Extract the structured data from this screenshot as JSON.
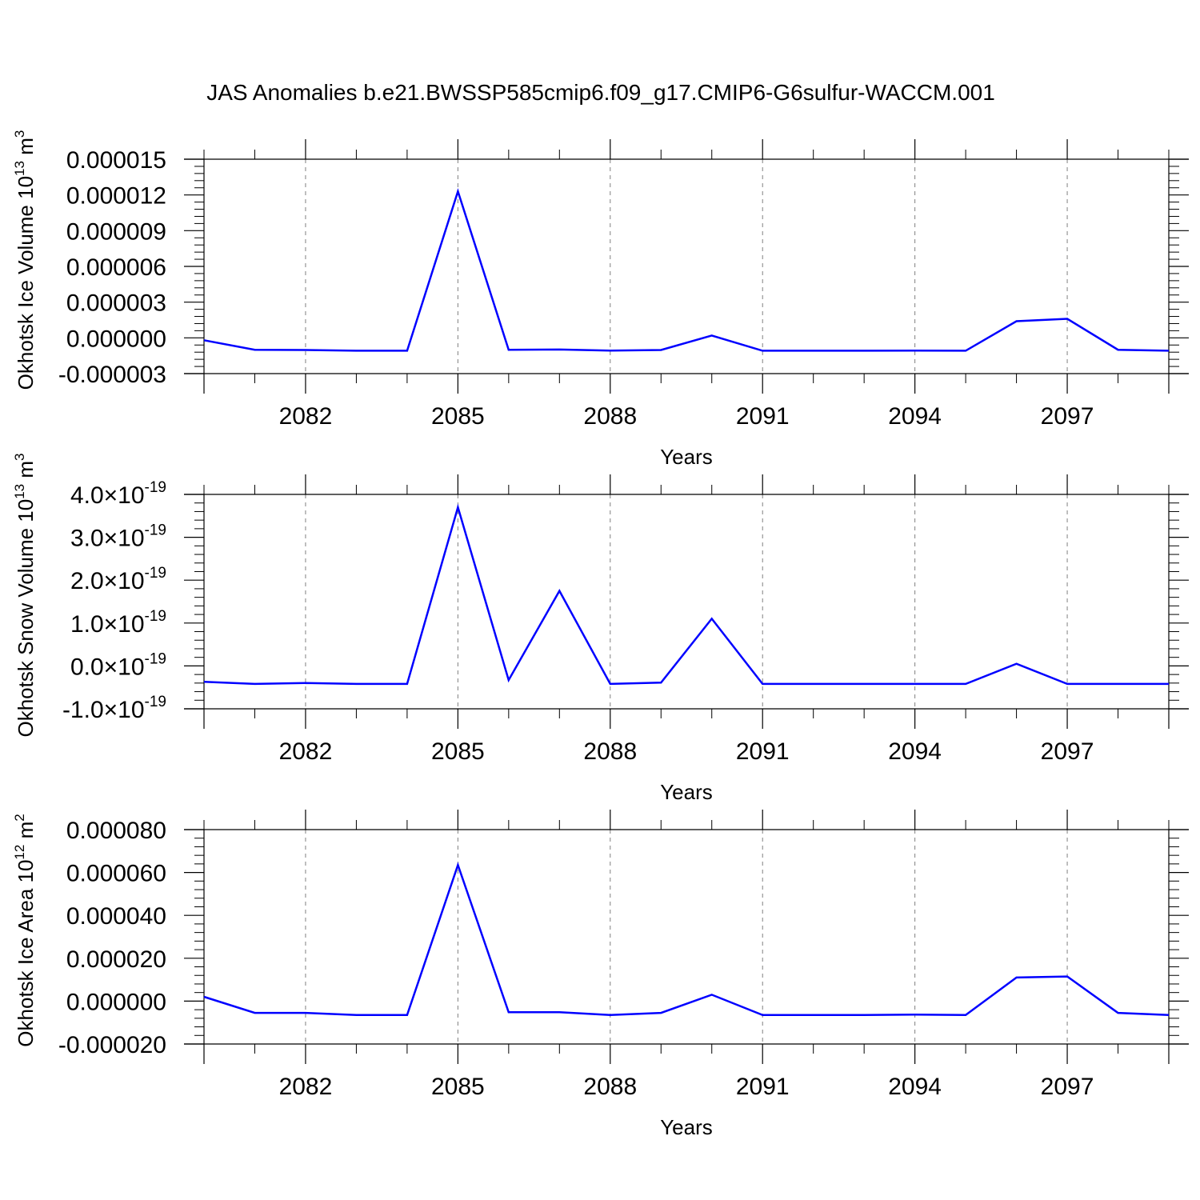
{
  "title": "JAS Anomalies b.e21.BWSSP585cmip6.f09_g17.CMIP6-G6sulfur-WACCM.001",
  "colors": {
    "line": "#0000ff",
    "axis": "#000000",
    "grid": "#808080"
  },
  "chart_data": [
    {
      "type": "line",
      "ylabel": "Okhotsk Ice Volume 10",
      "ylabel_sup": "13",
      "ylabel_unit": " m",
      "ylabel_unit_sup": "3",
      "xlabel": "Years",
      "xlim": [
        2080,
        2099
      ],
      "ylim": [
        -3e-06,
        1.5e-05
      ],
      "x_ticks": [
        2082,
        2085,
        2088,
        2091,
        2094,
        2097
      ],
      "x_tick_labels": [
        "2082",
        "2085",
        "2088",
        "2091",
        "2094",
        "2097"
      ],
      "y_ticks": [
        -3e-06,
        0,
        3e-06,
        6e-06,
        9e-06,
        1.2e-05,
        1.5e-05
      ],
      "y_tick_labels": [
        "-0.000003",
        "0.000000",
        "0.000003",
        "0.000006",
        "0.000009",
        "0.000012",
        "0.000015"
      ],
      "grid": "vertical dashed at major x ticks",
      "x": [
        2080,
        2081,
        2082,
        2083,
        2084,
        2085,
        2086,
        2087,
        2088,
        2089,
        2090,
        2091,
        2092,
        2093,
        2094,
        2095,
        2096,
        2097,
        2098,
        2099
      ],
      "series": [
        {
          "values": [
            -2e-07,
            -1e-06,
            -1.02e-06,
            -1.08e-06,
            -1.08e-06,
            1.23e-05,
            -1e-06,
            -9.8e-07,
            -1.07e-06,
            -1.02e-06,
            2e-07,
            -1.08e-06,
            -1.08e-06,
            -1.08e-06,
            -1.07e-06,
            -1.08e-06,
            1.4e-06,
            1.6e-06,
            -1e-06,
            -1.08e-06
          ]
        }
      ]
    },
    {
      "type": "line",
      "ylabel": "Okhotsk Snow Volume 10",
      "ylabel_sup": "13",
      "ylabel_unit": " m",
      "ylabel_unit_sup": "3",
      "xlabel": "Years",
      "xlim": [
        2080,
        2099
      ],
      "ylim": [
        -1e-19,
        4e-19
      ],
      "x_ticks": [
        2082,
        2085,
        2088,
        2091,
        2094,
        2097
      ],
      "x_tick_labels": [
        "2082",
        "2085",
        "2088",
        "2091",
        "2094",
        "2097"
      ],
      "y_ticks": [
        -1e-19,
        0,
        1e-19,
        2e-19,
        3e-19,
        4e-19
      ],
      "y_tick_mantissas": [
        "-1.0",
        "0.0",
        "1.0",
        "2.0",
        "3.0",
        "4.0"
      ],
      "y_tick_times": "×10",
      "y_tick_exponent": "-19",
      "grid": "vertical dashed at major x ticks",
      "x": [
        2080,
        2081,
        2082,
        2083,
        2084,
        2085,
        2086,
        2087,
        2088,
        2089,
        2090,
        2091,
        2092,
        2093,
        2094,
        2095,
        2096,
        2097,
        2098,
        2099
      ],
      "series": [
        {
          "values": [
            -3.7e-20,
            -4.2e-20,
            -4e-20,
            -4.2e-20,
            -4.2e-20,
            3.7e-19,
            -3.3e-20,
            1.75e-19,
            -4.2e-20,
            -3.9e-20,
            1.1e-19,
            -4.2e-20,
            -4.2e-20,
            -4.2e-20,
            -4.2e-20,
            -4.2e-20,
            5e-21,
            -4.2e-20,
            -4.2e-20,
            -4.2e-20
          ]
        }
      ]
    },
    {
      "type": "line",
      "ylabel": "Okhotsk Ice Area 10",
      "ylabel_sup": "12",
      "ylabel_unit": " m",
      "ylabel_unit_sup": "2",
      "xlabel": "Years",
      "xlim": [
        2080,
        2099
      ],
      "ylim": [
        -2e-05,
        8e-05
      ],
      "x_ticks": [
        2082,
        2085,
        2088,
        2091,
        2094,
        2097
      ],
      "x_tick_labels": [
        "2082",
        "2085",
        "2088",
        "2091",
        "2094",
        "2097"
      ],
      "y_ticks": [
        -2e-05,
        0,
        2e-05,
        4e-05,
        6e-05,
        8e-05
      ],
      "y_tick_labels": [
        "-0.000020",
        "0.000000",
        "0.000020",
        "0.000040",
        "0.000060",
        "0.000080"
      ],
      "grid": "vertical dashed at major x ticks",
      "x": [
        2080,
        2081,
        2082,
        2083,
        2084,
        2085,
        2086,
        2087,
        2088,
        2089,
        2090,
        2091,
        2092,
        2093,
        2094,
        2095,
        2096,
        2097,
        2098,
        2099
      ],
      "series": [
        {
          "values": [
            2e-06,
            -5.5e-06,
            -5.5e-06,
            -6.5e-06,
            -6.5e-06,
            6.35e-05,
            -5.2e-06,
            -5.2e-06,
            -6.5e-06,
            -5.5e-06,
            3e-06,
            -6.5e-06,
            -6.5e-06,
            -6.5e-06,
            -6.3e-06,
            -6.5e-06,
            1.1e-05,
            1.15e-05,
            -5.5e-06,
            -6.5e-06
          ]
        }
      ]
    }
  ]
}
